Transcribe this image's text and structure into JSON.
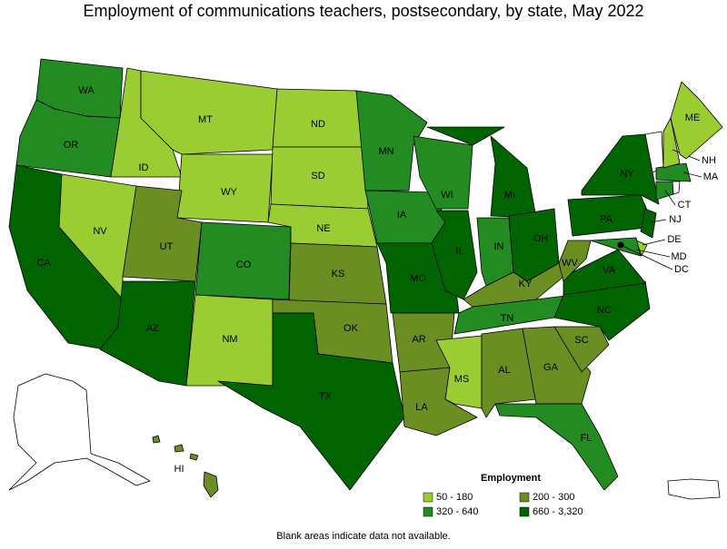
{
  "title": "Employment of communications teachers, postsecondary, by state, May 2022",
  "note": "Blank areas indicate data not available.",
  "legend": {
    "title": "Employment",
    "items": [
      {
        "label": "50 - 180",
        "color": "#9acd32"
      },
      {
        "label": "200 - 300",
        "color": "#6b8e23"
      },
      {
        "label": "320 - 640",
        "color": "#228b22"
      },
      {
        "label": "660 - 3,320",
        "color": "#006400"
      }
    ]
  },
  "states": [
    {
      "label": "WA",
      "color": "#228b22"
    },
    {
      "label": "OR",
      "color": "#228b22"
    },
    {
      "label": "CA",
      "color": "#006400"
    },
    {
      "label": "NV",
      "color": "#9acd32"
    },
    {
      "label": "ID",
      "color": "#9acd32"
    },
    {
      "label": "MT",
      "color": "#9acd32"
    },
    {
      "label": "WY",
      "color": "#9acd32"
    },
    {
      "label": "UT",
      "color": "#6b8e23"
    },
    {
      "label": "AZ",
      "color": "#006400"
    },
    {
      "label": "CO",
      "color": "#228b22"
    },
    {
      "label": "NM",
      "color": "#9acd32"
    },
    {
      "label": "ND",
      "color": "#9acd32"
    },
    {
      "label": "SD",
      "color": "#9acd32"
    },
    {
      "label": "NE",
      "color": "#9acd32"
    },
    {
      "label": "KS",
      "color": "#6b8e23"
    },
    {
      "label": "OK",
      "color": "#6b8e23"
    },
    {
      "label": "TX",
      "color": "#006400"
    },
    {
      "label": "MN",
      "color": "#228b22"
    },
    {
      "label": "IA",
      "color": "#228b22"
    },
    {
      "label": "MO",
      "color": "#006400"
    },
    {
      "label": "AR",
      "color": "#6b8e23"
    },
    {
      "label": "LA",
      "color": "#6b8e23"
    },
    {
      "label": "WI",
      "color": "#228b22"
    },
    {
      "label": "IL",
      "color": "#006400"
    },
    {
      "label": "MI",
      "color": "#006400"
    },
    {
      "label": "IN",
      "color": "#228b22"
    },
    {
      "label": "OH",
      "color": "#006400"
    },
    {
      "label": "KY",
      "color": "#6b8e23"
    },
    {
      "label": "TN",
      "color": "#228b22"
    },
    {
      "label": "MS",
      "color": "#9acd32"
    },
    {
      "label": "AL",
      "color": "#6b8e23"
    },
    {
      "label": "GA",
      "color": "#6b8e23"
    },
    {
      "label": "FL",
      "color": "#228b22"
    },
    {
      "label": "SC",
      "color": "#6b8e23"
    },
    {
      "label": "NC",
      "color": "#006400"
    },
    {
      "label": "VA",
      "color": "#006400"
    },
    {
      "label": "WV",
      "color": "#6b8e23"
    },
    {
      "label": "PA",
      "color": "#006400"
    },
    {
      "label": "NY",
      "color": "#006400"
    },
    {
      "label": "NJ",
      "color": "#006400"
    },
    {
      "label": "DE",
      "color": "#9acd32"
    },
    {
      "label": "MD",
      "color": "#228b22"
    },
    {
      "label": "CT",
      "color": "#228b22"
    },
    {
      "label": "MA",
      "color": "#228b22"
    },
    {
      "label": "NH",
      "color": "#9acd32"
    },
    {
      "label": "ME",
      "color": "#9acd32"
    },
    {
      "label": "DC",
      "color": "#006400"
    },
    {
      "label": "HI",
      "color": "#6b8e23"
    }
  ]
}
